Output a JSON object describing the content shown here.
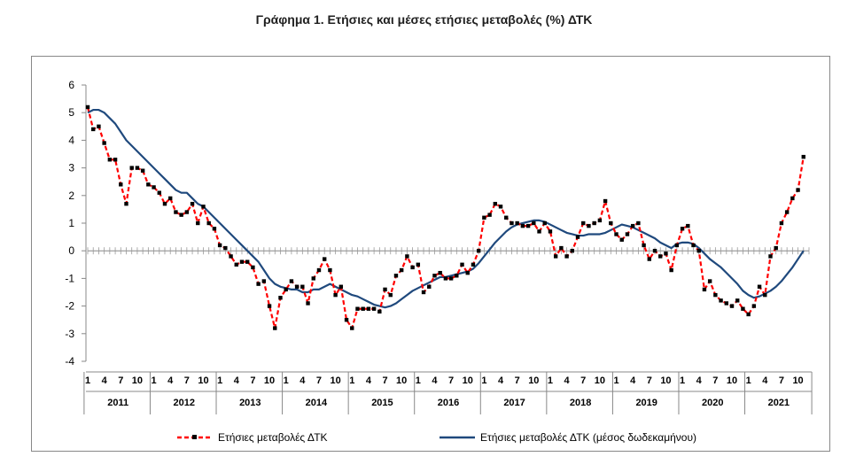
{
  "title": "Γράφημα 1. Ετήσιες και μέσες ετήσιες μεταβολές (%) ΔΤΚ",
  "colors": {
    "annual": "#ff0000",
    "average": "#1f497d",
    "markers": "#000000"
  },
  "chart_data": {
    "type": "line",
    "title": "Γράφημα 1. Ετήσιες και μέσες ετήσιες μεταβολές (%) ΔΤΚ",
    "ylim": [
      -4,
      6
    ],
    "yticks": [
      6,
      5,
      4,
      3,
      2,
      1,
      0,
      -1,
      -2,
      -3,
      -4
    ],
    "month_tick_labels": [
      "1",
      "4",
      "7",
      "10"
    ],
    "years": [
      "2011",
      "2012",
      "2013",
      "2014",
      "2015",
      "2016",
      "2017",
      "2018",
      "2019",
      "2020",
      "2021"
    ],
    "x_start": "2011-01",
    "x_end": "2021-10",
    "grid": false,
    "legend_position": "bottom",
    "series": [
      {
        "name": "Ετήσιες μεταβολές ΔΤΚ",
        "style": "dashed-with-markers",
        "values": [
          5.2,
          4.4,
          4.5,
          3.9,
          3.3,
          3.3,
          2.4,
          1.7,
          3.0,
          3.0,
          2.9,
          2.4,
          2.3,
          2.1,
          1.7,
          1.9,
          1.4,
          1.3,
          1.4,
          1.7,
          1.0,
          1.6,
          1.0,
          0.8,
          0.2,
          0.1,
          -0.2,
          -0.5,
          -0.4,
          -0.4,
          -0.6,
          -1.2,
          -1.1,
          -2.0,
          -2.8,
          -1.7,
          -1.4,
          -1.1,
          -1.3,
          -1.3,
          -1.9,
          -1.0,
          -0.7,
          -0.3,
          -0.7,
          -1.6,
          -1.3,
          -2.5,
          -2.8,
          -2.1,
          -2.1,
          -2.1,
          -2.1,
          -2.2,
          -1.4,
          -1.6,
          -0.9,
          -0.7,
          -0.2,
          -0.6,
          -0.5,
          -1.5,
          -1.3,
          -0.9,
          -0.8,
          -1.0,
          -1.0,
          -0.9,
          -0.5,
          -0.8,
          -0.5,
          0.0,
          1.2,
          1.3,
          1.7,
          1.6,
          1.2,
          1.0,
          1.0,
          0.9,
          0.9,
          1.0,
          0.7,
          1.0,
          0.7,
          -0.2,
          0.1,
          -0.2,
          0.0,
          0.5,
          1.0,
          0.9,
          1.0,
          1.1,
          1.8,
          1.0,
          0.6,
          0.4,
          0.6,
          0.9,
          1.0,
          0.2,
          -0.3,
          0.0,
          -0.2,
          -0.1,
          -0.7,
          0.2,
          0.8,
          0.9,
          0.2,
          0.0,
          -1.4,
          -1.1,
          -1.6,
          -1.8,
          -1.9,
          -2.0,
          -1.8,
          -2.1,
          -2.3,
          -2.0,
          -1.3,
          -1.6,
          -0.2,
          0.1,
          1.0,
          1.4,
          1.9,
          2.2,
          3.4
        ]
      },
      {
        "name": "Ετήσιες μεταβολές ΔΤΚ (μέσος δωδεκαμήνου)",
        "style": "solid",
        "values": [
          5.0,
          5.1,
          5.1,
          5.0,
          4.8,
          4.6,
          4.3,
          4.0,
          3.8,
          3.6,
          3.4,
          3.2,
          3.0,
          2.8,
          2.6,
          2.4,
          2.2,
          2.1,
          2.1,
          1.9,
          1.7,
          1.6,
          1.4,
          1.2,
          1.0,
          0.8,
          0.6,
          0.4,
          0.2,
          0.0,
          -0.2,
          -0.4,
          -0.7,
          -1.0,
          -1.2,
          -1.3,
          -1.35,
          -1.4,
          -1.4,
          -1.5,
          -1.5,
          -1.4,
          -1.4,
          -1.3,
          -1.2,
          -1.3,
          -1.4,
          -1.5,
          -1.6,
          -1.65,
          -1.75,
          -1.85,
          -1.95,
          -2.0,
          -2.05,
          -2.0,
          -1.9,
          -1.75,
          -1.6,
          -1.45,
          -1.35,
          -1.25,
          -1.15,
          -1.05,
          -0.95,
          -0.95,
          -0.9,
          -0.85,
          -0.8,
          -0.75,
          -0.65,
          -0.45,
          -0.2,
          0.05,
          0.3,
          0.5,
          0.7,
          0.85,
          0.95,
          1.0,
          1.05,
          1.1,
          1.1,
          1.05,
          0.95,
          0.85,
          0.75,
          0.65,
          0.6,
          0.55,
          0.55,
          0.6,
          0.6,
          0.6,
          0.65,
          0.75,
          0.85,
          0.95,
          0.9,
          0.85,
          0.75,
          0.65,
          0.55,
          0.45,
          0.3,
          0.2,
          0.1,
          0.25,
          0.3,
          0.3,
          0.25,
          0.1,
          -0.1,
          -0.3,
          -0.45,
          -0.6,
          -0.8,
          -1.0,
          -1.2,
          -1.45,
          -1.6,
          -1.7,
          -1.65,
          -1.55,
          -1.45,
          -1.3,
          -1.1,
          -0.85,
          -0.6,
          -0.3,
          0.0
        ]
      }
    ]
  }
}
